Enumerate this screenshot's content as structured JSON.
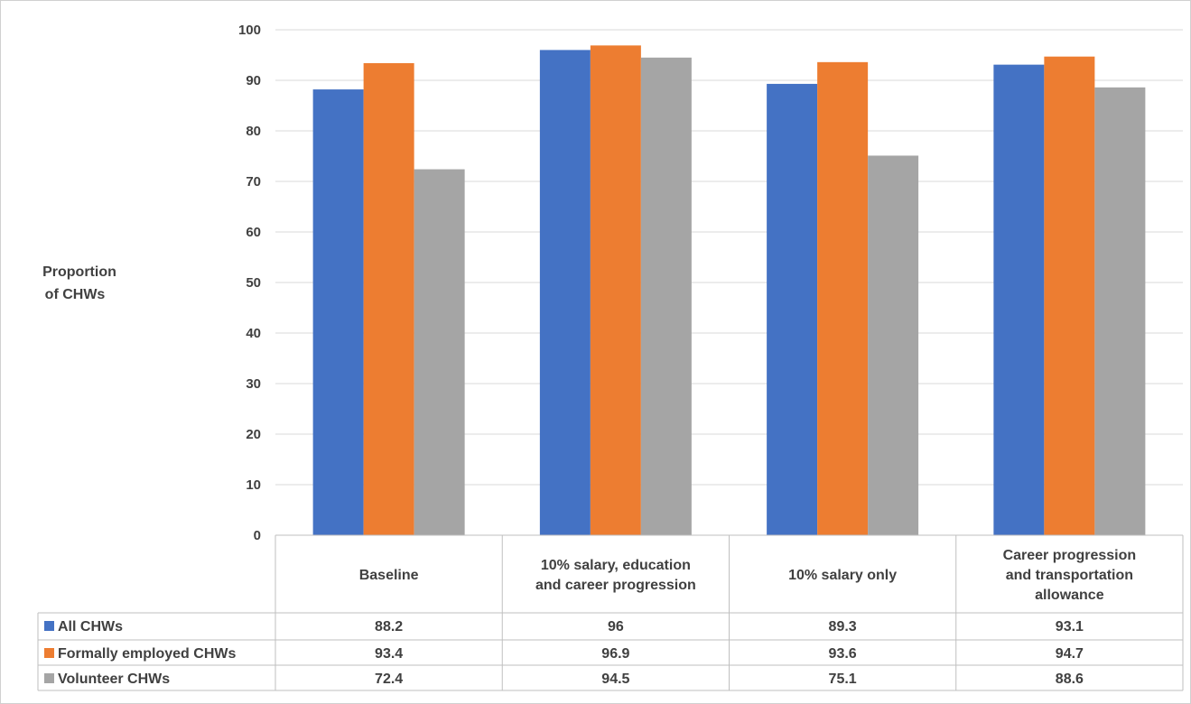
{
  "chart_data": {
    "type": "bar",
    "title": "",
    "xlabel": "",
    "ylabel": [
      "Proportion",
      "of CHWs"
    ],
    "ylim": [
      0,
      100
    ],
    "yticks": [
      "0",
      "10",
      "20",
      "30",
      "40",
      "50",
      "60",
      "70",
      "80",
      "90",
      "100"
    ],
    "grid": true,
    "categories": [
      [
        "Baseline"
      ],
      [
        "10% salary, education",
        "and career progression"
      ],
      [
        "10% salary only"
      ],
      [
        "Career progression",
        "and transportation",
        "allowance"
      ]
    ],
    "series": [
      {
        "name": "All CHWs",
        "color": "#4472c4",
        "values": [
          88.2,
          96,
          89.3,
          93.1
        ],
        "labels": [
          "88.2",
          "96",
          "89.3",
          "93.1"
        ]
      },
      {
        "name": "Formally employed CHWs",
        "color": "#ed7d31",
        "values": [
          93.4,
          96.9,
          93.6,
          94.7
        ],
        "labels": [
          "93.4",
          "96.9",
          "93.6",
          "94.7"
        ]
      },
      {
        "name": "Volunteer CHWs",
        "color": "#a5a5a5",
        "values": [
          72.4,
          94.5,
          75.1,
          88.6
        ],
        "labels": [
          "72.4",
          "94.5",
          "75.1",
          "88.6"
        ]
      }
    ],
    "legend_placement": "data-table"
  }
}
